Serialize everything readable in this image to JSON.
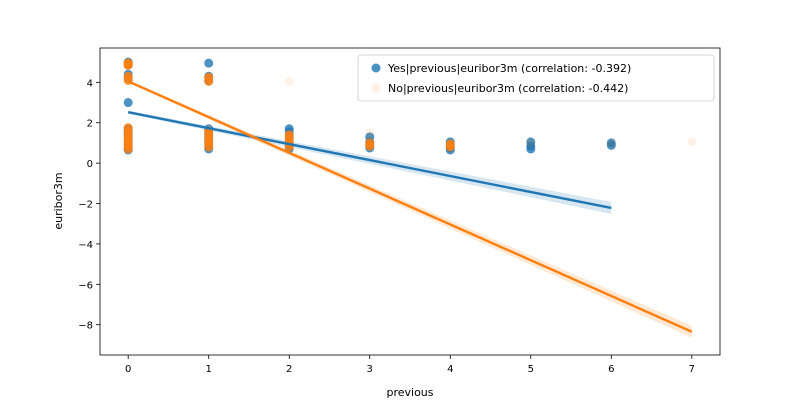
{
  "chart_data": {
    "type": "scatter",
    "xlabel": "previous",
    "ylabel": "euribor3m",
    "xlim": [
      -0.35,
      7.35
    ],
    "ylim": [
      -9.5,
      5.7
    ],
    "xticks": [
      0,
      1,
      2,
      3,
      4,
      5,
      6,
      7
    ],
    "yticks": [
      -8,
      -6,
      -4,
      -2,
      0,
      2,
      4
    ],
    "grid": false,
    "legend_position": "top-right",
    "series": [
      {
        "name": "Yes|previous|euribor3m (correlation: -0.392)",
        "color": "#1f77b4",
        "marker_alpha": 0.8,
        "points": [
          {
            "x": 0,
            "y": 5.0
          },
          {
            "x": 0,
            "y": 4.96
          },
          {
            "x": 0,
            "y": 4.86
          },
          {
            "x": 0,
            "y": 4.4
          },
          {
            "x": 0,
            "y": 4.2
          },
          {
            "x": 0,
            "y": 3.0
          },
          {
            "x": 0,
            "y": 1.7
          },
          {
            "x": 0,
            "y": 1.6
          },
          {
            "x": 0,
            "y": 1.45
          },
          {
            "x": 0,
            "y": 1.3
          },
          {
            "x": 0,
            "y": 1.2
          },
          {
            "x": 0,
            "y": 1.05
          },
          {
            "x": 0,
            "y": 0.9
          },
          {
            "x": 0,
            "y": 0.75
          },
          {
            "x": 0,
            "y": 0.65
          },
          {
            "x": 1,
            "y": 4.95
          },
          {
            "x": 1,
            "y": 4.3
          },
          {
            "x": 1,
            "y": 4.1
          },
          {
            "x": 1,
            "y": 1.7
          },
          {
            "x": 1,
            "y": 1.5
          },
          {
            "x": 1,
            "y": 1.3
          },
          {
            "x": 1,
            "y": 1.1
          },
          {
            "x": 1,
            "y": 0.9
          },
          {
            "x": 1,
            "y": 0.7
          },
          {
            "x": 2,
            "y": 1.7
          },
          {
            "x": 2,
            "y": 1.55
          },
          {
            "x": 2,
            "y": 1.3
          },
          {
            "x": 2,
            "y": 1.05
          },
          {
            "x": 2,
            "y": 0.85
          },
          {
            "x": 2,
            "y": 0.7
          },
          {
            "x": 3,
            "y": 1.3
          },
          {
            "x": 3,
            "y": 1.05
          },
          {
            "x": 3,
            "y": 0.9
          },
          {
            "x": 3,
            "y": 0.75
          },
          {
            "x": 4,
            "y": 1.05
          },
          {
            "x": 4,
            "y": 0.9
          },
          {
            "x": 4,
            "y": 0.75
          },
          {
            "x": 4,
            "y": 0.65
          },
          {
            "x": 5,
            "y": 1.05
          },
          {
            "x": 5,
            "y": 0.85
          },
          {
            "x": 5,
            "y": 0.7
          },
          {
            "x": 6,
            "y": 1.0
          },
          {
            "x": 6,
            "y": 0.88
          }
        ],
        "regression": {
          "x0": 0,
          "y0": 2.52,
          "x1": 6,
          "y1": -2.22
        }
      },
      {
        "name": "No|previous|euribor3m (correlation: -0.442)",
        "color": "#ff7f0e",
        "marker_alpha": 0.1,
        "points": [
          {
            "x": 0,
            "y": 4.96
          },
          {
            "x": 0,
            "y": 4.86
          },
          {
            "x": 0,
            "y": 4.1
          },
          {
            "x": 0,
            "y": 1.4
          },
          {
            "x": 0,
            "y": 1.0
          },
          {
            "x": 0,
            "y": 0.7
          },
          {
            "x": 1,
            "y": 4.2
          },
          {
            "x": 1,
            "y": 1.3
          },
          {
            "x": 1,
            "y": 0.9
          },
          {
            "x": 2,
            "y": 4.05
          },
          {
            "x": 2,
            "y": 1.4
          },
          {
            "x": 2,
            "y": 1.0
          },
          {
            "x": 3,
            "y": 1.5
          },
          {
            "x": 3,
            "y": 1.1
          },
          {
            "x": 3,
            "y": 0.8
          },
          {
            "x": 4,
            "y": 1.0
          },
          {
            "x": 4,
            "y": 0.85
          },
          {
            "x": 5,
            "y": 1.0
          },
          {
            "x": 6,
            "y": 0.95
          },
          {
            "x": 7,
            "y": 1.05
          }
        ],
        "solid_points": [
          {
            "x": 0,
            "y": 4.96
          },
          {
            "x": 0,
            "y": 4.9
          },
          {
            "x": 0,
            "y": 4.85
          },
          {
            "x": 0,
            "y": 4.3
          },
          {
            "x": 0,
            "y": 4.1
          },
          {
            "x": 0,
            "y": 1.75
          },
          {
            "x": 0,
            "y": 1.55
          },
          {
            "x": 0,
            "y": 1.35
          },
          {
            "x": 0,
            "y": 1.2
          },
          {
            "x": 0,
            "y": 1.0
          },
          {
            "x": 0,
            "y": 0.85
          },
          {
            "x": 0,
            "y": 0.7
          },
          {
            "x": 1,
            "y": 4.25
          },
          {
            "x": 1,
            "y": 4.05
          },
          {
            "x": 1,
            "y": 1.6
          },
          {
            "x": 1,
            "y": 1.4
          },
          {
            "x": 1,
            "y": 1.2
          },
          {
            "x": 1,
            "y": 1.0
          },
          {
            "x": 1,
            "y": 0.8
          },
          {
            "x": 2,
            "y": 1.4
          },
          {
            "x": 2,
            "y": 1.2
          },
          {
            "x": 2,
            "y": 1.0
          },
          {
            "x": 2,
            "y": 0.8
          },
          {
            "x": 3,
            "y": 1.0
          },
          {
            "x": 3,
            "y": 0.85
          },
          {
            "x": 4,
            "y": 0.95
          },
          {
            "x": 4,
            "y": 0.8
          }
        ],
        "regression": {
          "x0": 0,
          "y0": 4.05,
          "x1": 7,
          "y1": -8.35
        }
      }
    ]
  }
}
